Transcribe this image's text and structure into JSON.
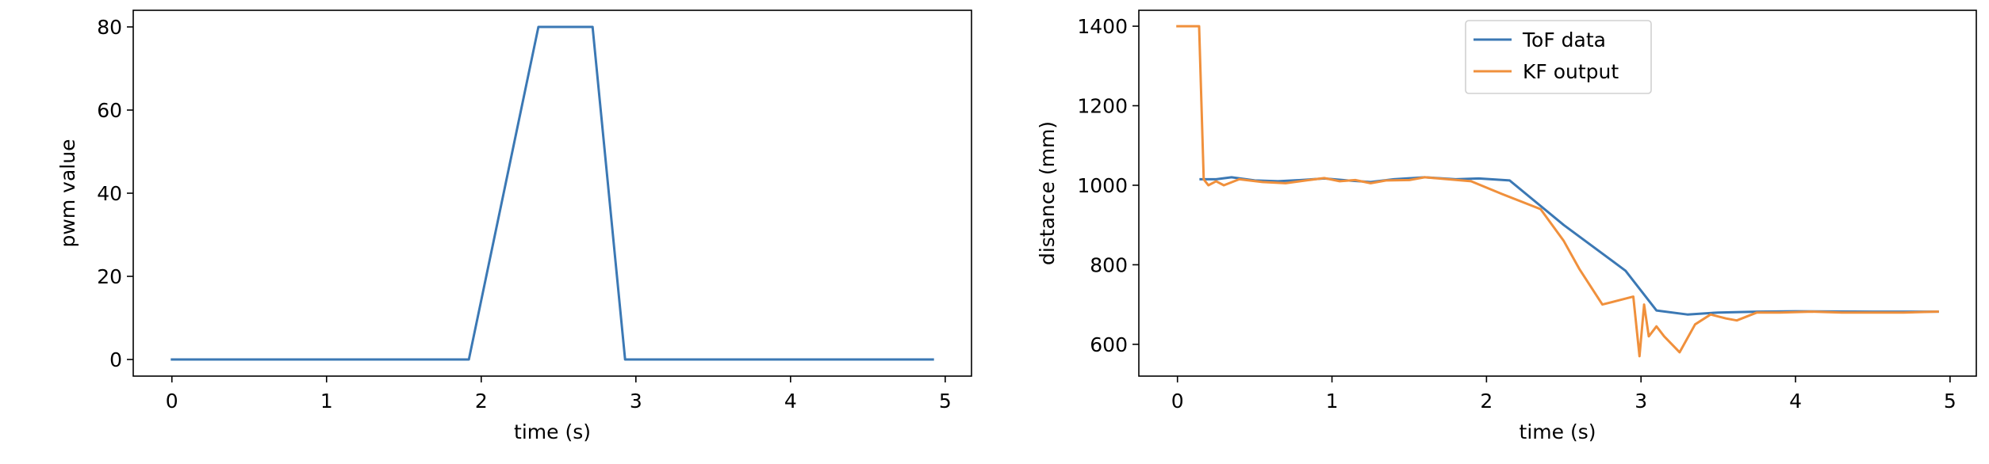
{
  "chart_data": [
    {
      "type": "line",
      "title": "",
      "xlabel": "time (s)",
      "ylabel": "pwm value",
      "xlim": [
        -0.25,
        5.17
      ],
      "ylim": [
        -4,
        84
      ],
      "xticks": [
        0,
        1,
        2,
        3,
        4,
        5
      ],
      "yticks": [
        0,
        20,
        40,
        60,
        80
      ],
      "grid": false,
      "legend": null,
      "series": [
        {
          "color": "#3b78b4",
          "x": [
            0,
            1.92,
            2.37,
            2.72,
            2.93,
            4.92
          ],
          "y": [
            0,
            0,
            80,
            80,
            0,
            0
          ]
        }
      ]
    },
    {
      "type": "line",
      "title": "",
      "xlabel": "time (s)",
      "ylabel": "distance (mm)",
      "xlim": [
        -0.25,
        5.17
      ],
      "ylim": [
        520,
        1440
      ],
      "xticks": [
        0,
        1,
        2,
        3,
        4,
        5
      ],
      "yticks": [
        600,
        800,
        1000,
        1200,
        1400
      ],
      "grid": false,
      "legend": "upper center",
      "series": [
        {
          "name": "ToF data",
          "color": "#3b78b4",
          "x": [
            0.15,
            0.25,
            0.35,
            0.5,
            0.65,
            0.8,
            0.95,
            1.1,
            1.25,
            1.4,
            1.6,
            1.8,
            1.95,
            2.15,
            2.5,
            2.9,
            3.1,
            3.3,
            3.5,
            3.75,
            4.0,
            4.5,
            4.92
          ],
          "y": [
            1015,
            1015,
            1020,
            1012,
            1010,
            1013,
            1017,
            1012,
            1008,
            1015,
            1020,
            1015,
            1017,
            1012,
            900,
            785,
            685,
            675,
            680,
            682,
            683,
            682,
            682
          ]
        },
        {
          "name": "KF output",
          "color": "#f0903c",
          "x": [
            0,
            0.14,
            0.17,
            0.2,
            0.25,
            0.3,
            0.4,
            0.55,
            0.7,
            0.85,
            0.95,
            1.05,
            1.15,
            1.25,
            1.35,
            1.5,
            1.6,
            1.75,
            1.9,
            2.1,
            2.35,
            2.5,
            2.6,
            2.75,
            2.95,
            2.99,
            3.02,
            3.05,
            3.1,
            3.15,
            3.25,
            3.35,
            3.45,
            3.55,
            3.62,
            3.75,
            3.9,
            4.1,
            4.3,
            4.5,
            4.7,
            4.92
          ],
          "y": [
            1400,
            1400,
            1015,
            1000,
            1010,
            1000,
            1015,
            1008,
            1005,
            1013,
            1018,
            1010,
            1013,
            1005,
            1012,
            1013,
            1020,
            1015,
            1010,
            978,
            940,
            860,
            790,
            700,
            720,
            570,
            700,
            620,
            645,
            620,
            580,
            650,
            675,
            665,
            660,
            680,
            680,
            682,
            680,
            680,
            680,
            682
          ]
        }
      ]
    }
  ]
}
